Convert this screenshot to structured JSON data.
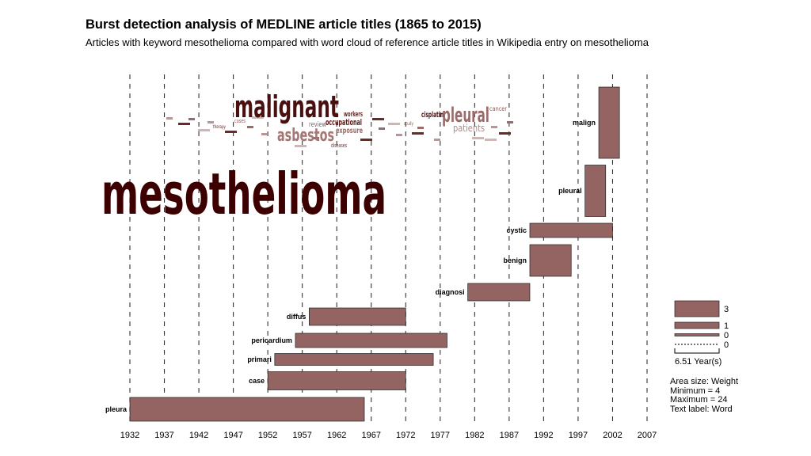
{
  "title": "Burst detection analysis of MEDLINE article titles (1865 to 2015)",
  "subtitle": "Articles with keyword mesothelioma compared with word cloud of reference article titles in Wikipedia entry on mesothelioma",
  "chart_data": {
    "type": "bar",
    "orientation": "horizontal-gantt",
    "x_ticks": [
      1932,
      1937,
      1942,
      1947,
      1952,
      1957,
      1962,
      1967,
      1972,
      1977,
      1982,
      1987,
      1992,
      1997,
      2002,
      2007
    ],
    "xlim": [
      1932,
      2007
    ],
    "grid": "vertical dashed at each tick",
    "bar_color": "#936462",
    "bursts": [
      {
        "word": "pleura",
        "start": 1932.0,
        "end": 1966.0,
        "weight": 3.0
      },
      {
        "word": "case",
        "start": 1952.0,
        "end": 1972.0,
        "weight": 2.3
      },
      {
        "word": "primari",
        "start": 1953.0,
        "end": 1976.0,
        "weight": 1.5
      },
      {
        "word": "pericardium",
        "start": 1956.0,
        "end": 1978.0,
        "weight": 1.8
      },
      {
        "word": "diffus",
        "start": 1958.0,
        "end": 1972.0,
        "weight": 2.2
      },
      {
        "word": "diagnosi",
        "start": 1981.0,
        "end": 1990.0,
        "weight": 2.2
      },
      {
        "word": "benign",
        "start": 1990.0,
        "end": 1996.0,
        "weight": 4.0
      },
      {
        "word": "cystic",
        "start": 1990.0,
        "end": 2002.0,
        "weight": 1.8
      },
      {
        "word": "pleural",
        "start": 1998.0,
        "end": 2001.0,
        "weight": 6.5
      },
      {
        "word": "malign",
        "start": 2000.0,
        "end": 2003.0,
        "weight": 9.0
      }
    ],
    "legend": {
      "position": "right",
      "items": [
        "3",
        "1",
        "0",
        "0"
      ],
      "scale_label": "6.51 Year(s)",
      "notes": [
        "Area size: Weight",
        "Minimum = 4",
        "Maximum = 24",
        "Text label: Word"
      ]
    }
  },
  "word_cloud": {
    "large_word": "mesothelioma",
    "large_color": "#3d0000",
    "main_words": [
      {
        "text": "malignant",
        "color": "#4a1010"
      },
      {
        "text": "pleural",
        "color": "#9b6b69"
      },
      {
        "text": "asbestos",
        "color": "#a57673"
      },
      {
        "text": "occupational",
        "color": "#5a1a18"
      },
      {
        "text": "cisplatin",
        "color": "#4a1010"
      },
      {
        "text": "workers",
        "color": "#6a2a28"
      },
      {
        "text": "review",
        "color": "#8b5b59"
      },
      {
        "text": "exposure",
        "color": "#9b6b69"
      },
      {
        "text": "patients",
        "color": "#b08a88"
      },
      {
        "text": "cancer",
        "color": "#8b5b59"
      },
      {
        "text": "diseases",
        "color": "#6a2a28"
      },
      {
        "text": "cases",
        "color": "#8b5b59"
      },
      {
        "text": "therapy",
        "color": "#6a2a28"
      },
      {
        "text": "study",
        "color": "#8b5b59"
      }
    ]
  }
}
